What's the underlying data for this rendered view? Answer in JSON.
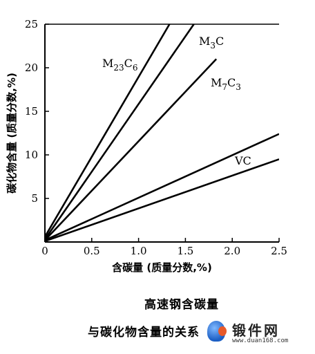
{
  "chart_data": {
    "type": "line",
    "title": "",
    "xlabel": "含碳量 (质量分数,%)",
    "ylabel": "碳化物含量 (质量分数,%)",
    "xlim": [
      0,
      2.5
    ],
    "ylim": [
      0,
      25
    ],
    "x_ticks": [
      "0",
      "0.5",
      "1.0",
      "1.5",
      "2.0",
      "2.5"
    ],
    "y_ticks": [
      "5",
      "10",
      "15",
      "20",
      "25"
    ],
    "grid": false,
    "series": [
      {
        "name": "M23C6",
        "label": "M",
        "sub1": "23",
        "mid": "C",
        "sub2": "6",
        "points": [
          [
            0,
            0.6
          ],
          [
            1.33,
            25
          ]
        ]
      },
      {
        "name": "M3C",
        "label": "M",
        "sub1": "3",
        "mid": "C",
        "sub2": "",
        "points": [
          [
            0,
            0.3
          ],
          [
            1.59,
            25
          ]
        ]
      },
      {
        "name": "M7C3",
        "label": "M",
        "sub1": "7",
        "mid": "C",
        "sub2": "3",
        "points": [
          [
            0,
            0.2
          ],
          [
            1.83,
            21
          ]
        ]
      },
      {
        "name": "VC-upper",
        "label": "VC",
        "sub1": "",
        "mid": "",
        "sub2": "",
        "points": [
          [
            0,
            0.2
          ],
          [
            2.5,
            12.4
          ]
        ]
      },
      {
        "name": "VC-lower",
        "label": "",
        "sub1": "",
        "mid": "",
        "sub2": "",
        "points": [
          [
            0,
            0.1
          ],
          [
            2.5,
            9.5
          ]
        ]
      }
    ]
  },
  "caption": {
    "line1": "高速钢含碳量",
    "line2": "与碳化物含量的关系"
  },
  "watermark": {
    "title": "锻件网",
    "url": "www.duan168.com"
  }
}
